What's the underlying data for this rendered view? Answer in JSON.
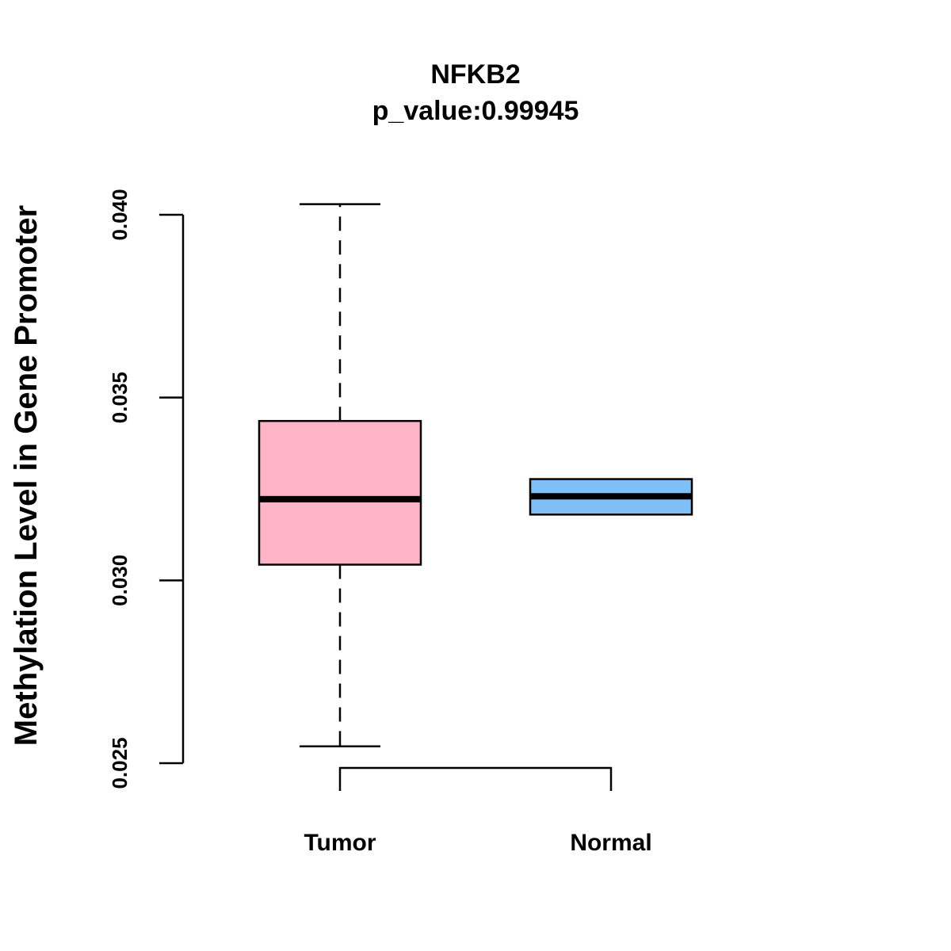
{
  "chart_data": {
    "type": "boxplot",
    "title": "NFKB2",
    "subtitle": "p_value:0.99945",
    "ylabel": "Methylation Level in Gene Promoter",
    "xlabel": "",
    "ylim": [
      0.025,
      0.04
    ],
    "yticks": [
      0.025,
      0.03,
      0.035,
      0.04
    ],
    "ytick_labels": [
      "0.025",
      "0.030",
      "0.035",
      "0.040"
    ],
    "categories": [
      "Tumor",
      "Normal"
    ],
    "series": [
      {
        "name": "Tumor",
        "min": 0.02546,
        "q1": 0.03043,
        "median": 0.03222,
        "q3": 0.03436,
        "max": 0.04029,
        "color": "#FFB3C6",
        "whiskers": true
      },
      {
        "name": "Normal",
        "min": 0.0318,
        "q1": 0.0318,
        "median": 0.0323,
        "q3": 0.03277,
        "max": 0.03277,
        "color": "#7FBFF5",
        "whiskers": false
      }
    ],
    "bracket": {
      "from": "Tumor",
      "to": "Normal"
    }
  }
}
